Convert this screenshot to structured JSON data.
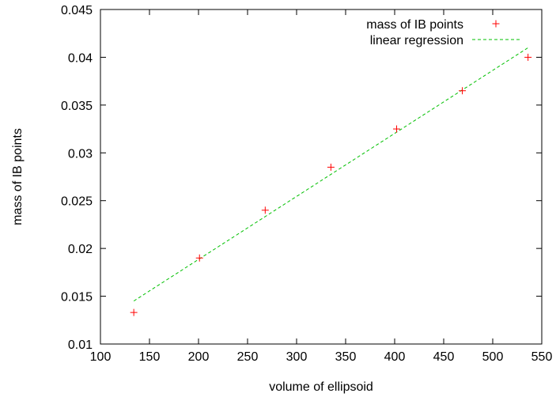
{
  "chart_data": {
    "type": "scatter",
    "title": "",
    "xlabel": "volume of ellipsoid",
    "ylabel": "mass of IB points",
    "xlim": [
      100,
      550
    ],
    "ylim": [
      0.01,
      0.045
    ],
    "xticks": [
      100,
      150,
      200,
      250,
      300,
      350,
      400,
      450,
      500,
      550
    ],
    "xtick_labels": [
      "100",
      "150",
      "200",
      "250",
      "300",
      "350",
      "400",
      "450",
      "500",
      "550"
    ],
    "yticks": [
      0.01,
      0.015,
      0.02,
      0.025,
      0.03,
      0.035,
      0.04,
      0.045
    ],
    "ytick_labels": [
      "0.01",
      "0.015",
      "0.02",
      "0.025",
      "0.03",
      "0.035",
      "0.04",
      "0.045"
    ],
    "grid": false,
    "legend_position": "top-right",
    "series": [
      {
        "name": "mass of IB points",
        "kind": "points",
        "marker": "plus",
        "color": "#ff0000",
        "x": [
          134,
          201,
          268,
          335,
          402,
          469,
          536
        ],
        "y": [
          0.0133,
          0.019,
          0.024,
          0.0285,
          0.0325,
          0.0365,
          0.04
        ]
      },
      {
        "name": "linear regression",
        "kind": "line",
        "dash": "dashed",
        "color": "#00c000",
        "x": [
          134,
          536
        ],
        "y": [
          0.0145,
          0.041
        ]
      }
    ]
  }
}
